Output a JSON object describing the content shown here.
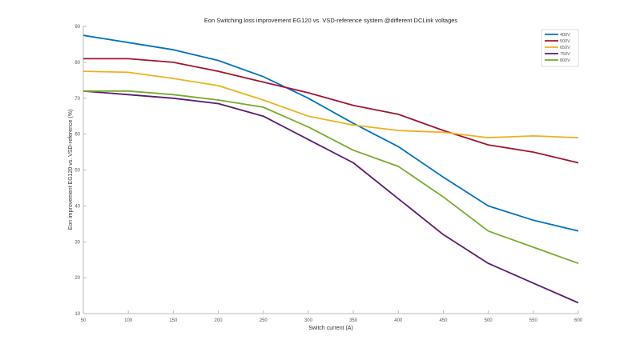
{
  "chart_data": {
    "type": "line",
    "title": "Eon Switching loss improvement EG120 vs. VSD-reference system @different DCLink voltages",
    "xlabel": "Switch current (A)",
    "ylabel": "Eon improvement EG120 vs. VSD-reference (%)",
    "x": [
      50,
      100,
      150,
      200,
      250,
      300,
      350,
      400,
      450,
      500,
      550,
      600
    ],
    "xlim": [
      50,
      600
    ],
    "ylim": [
      10,
      90
    ],
    "xticks": [
      50,
      100,
      150,
      200,
      250,
      300,
      350,
      400,
      450,
      500,
      550,
      600
    ],
    "yticks": [
      10,
      20,
      30,
      40,
      50,
      60,
      70,
      80,
      90
    ],
    "grid": false,
    "legend_position": "upper right",
    "series": [
      {
        "name": "400V",
        "color": "#0072BD",
        "values": [
          87.5,
          85.5,
          83.5,
          80.5,
          76,
          70,
          63,
          56.5,
          48,
          40,
          36,
          33
        ]
      },
      {
        "name": "500V",
        "color": "#A2142F",
        "values": [
          81,
          81,
          80,
          77.5,
          74.5,
          71.5,
          68,
          65.5,
          61,
          57,
          55,
          52
        ]
      },
      {
        "name": "650V",
        "color": "#EDB120",
        "values": [
          77.5,
          77.2,
          75.5,
          73.5,
          69.5,
          65,
          62.5,
          61,
          60.5,
          59,
          59.5,
          59
        ]
      },
      {
        "name": "750V",
        "color": "#5B1A6F",
        "values": [
          72,
          71,
          70,
          68.5,
          65,
          58.5,
          52,
          42,
          32,
          24,
          18.5,
          13
        ]
      },
      {
        "name": "800V",
        "color": "#77AC30",
        "values": [
          72,
          72,
          71,
          69.5,
          67.5,
          62,
          55.5,
          51,
          42.5,
          33,
          28.5,
          24
        ]
      }
    ]
  }
}
